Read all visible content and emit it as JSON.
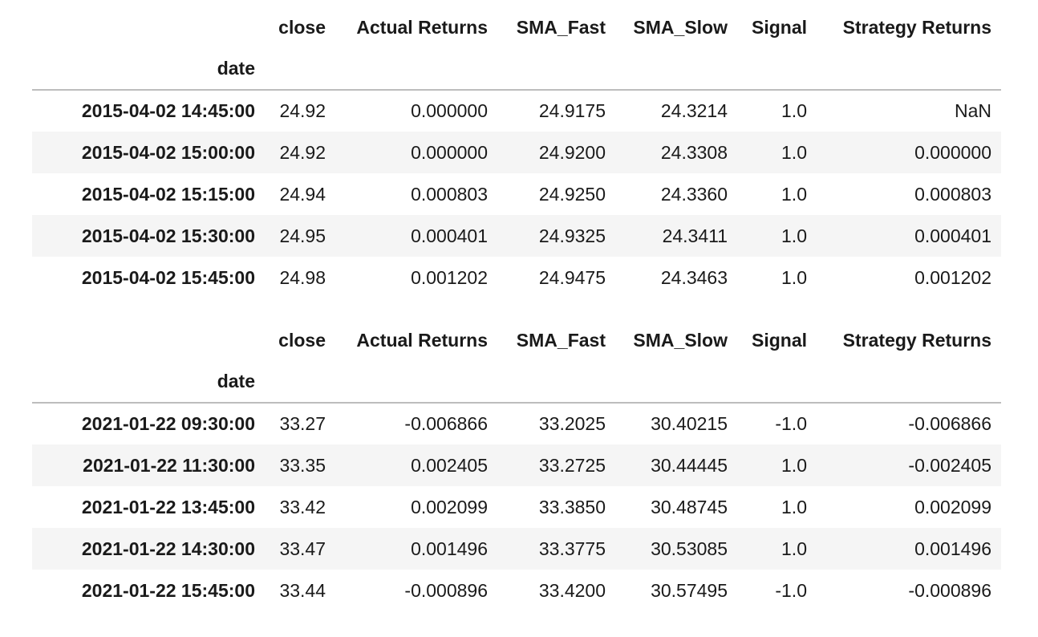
{
  "tables": [
    {
      "columns": [
        "close",
        "Actual Returns",
        "SMA_Fast",
        "SMA_Slow",
        "Signal",
        "Strategy Returns"
      ],
      "index_name": "date",
      "rows": [
        {
          "index": "2015-04-02 14:45:00",
          "cells": [
            "24.92",
            "0.000000",
            "24.9175",
            "24.3214",
            "1.0",
            "NaN"
          ]
        },
        {
          "index": "2015-04-02 15:00:00",
          "cells": [
            "24.92",
            "0.000000",
            "24.9200",
            "24.3308",
            "1.0",
            "0.000000"
          ]
        },
        {
          "index": "2015-04-02 15:15:00",
          "cells": [
            "24.94",
            "0.000803",
            "24.9250",
            "24.3360",
            "1.0",
            "0.000803"
          ]
        },
        {
          "index": "2015-04-02 15:30:00",
          "cells": [
            "24.95",
            "0.000401",
            "24.9325",
            "24.3411",
            "1.0",
            "0.000401"
          ]
        },
        {
          "index": "2015-04-02 15:45:00",
          "cells": [
            "24.98",
            "0.001202",
            "24.9475",
            "24.3463",
            "1.0",
            "0.001202"
          ]
        }
      ]
    },
    {
      "columns": [
        "close",
        "Actual Returns",
        "SMA_Fast",
        "SMA_Slow",
        "Signal",
        "Strategy Returns"
      ],
      "index_name": "date",
      "rows": [
        {
          "index": "2021-01-22 09:30:00",
          "cells": [
            "33.27",
            "-0.006866",
            "33.2025",
            "30.40215",
            "-1.0",
            "-0.006866"
          ]
        },
        {
          "index": "2021-01-22 11:30:00",
          "cells": [
            "33.35",
            "0.002405",
            "33.2725",
            "30.44445",
            "1.0",
            "-0.002405"
          ]
        },
        {
          "index": "2021-01-22 13:45:00",
          "cells": [
            "33.42",
            "0.002099",
            "33.3850",
            "30.48745",
            "1.0",
            "0.002099"
          ]
        },
        {
          "index": "2021-01-22 14:30:00",
          "cells": [
            "33.47",
            "0.001496",
            "33.3775",
            "30.53085",
            "1.0",
            "0.001496"
          ]
        },
        {
          "index": "2021-01-22 15:45:00",
          "cells": [
            "33.44",
            "-0.000896",
            "33.4200",
            "30.57495",
            "-1.0",
            "-0.000896"
          ]
        }
      ]
    }
  ]
}
